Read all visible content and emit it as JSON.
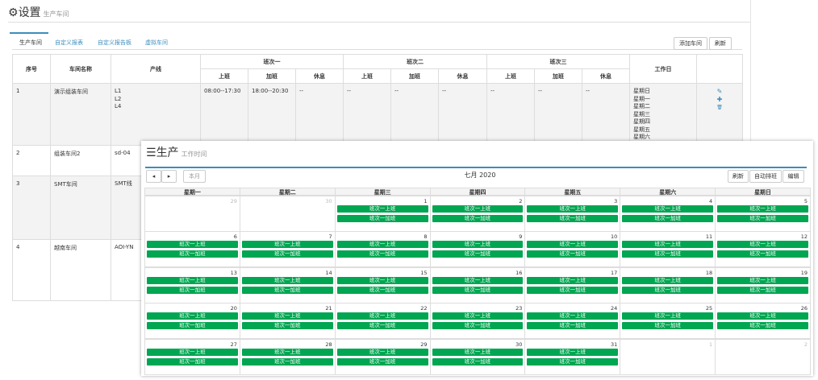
{
  "back": {
    "title": "设置",
    "subtitle": "生产车间",
    "tabs": [
      "生产车间",
      "自定义报表",
      "自定义报告板",
      "虚拟车间"
    ],
    "buttons": [
      "添加车间",
      "刷新"
    ],
    "table": {
      "headers": [
        "序号",
        "车间名称",
        "产线",
        "班次一",
        "班次二",
        "班次三",
        "工作日"
      ],
      "subheaders": [
        "上班",
        "加班",
        "休息",
        "上班",
        "加班",
        "休息",
        "上班",
        "加班",
        "休息"
      ],
      "rows": [
        {
          "id": "1",
          "name": "演示组装车间",
          "lines": [
            "L1",
            "L2",
            "L4"
          ],
          "shifts": [
            "08:00--17:30",
            "18:00--20:30",
            "--",
            "--",
            "--",
            "--",
            "--",
            "--",
            "--"
          ],
          "workdays": [
            "星期日",
            "星期一",
            "星期二",
            "星期三",
            "星期四",
            "星期五",
            "星期六"
          ]
        },
        {
          "id": "2",
          "name": "组装车间2",
          "lines": [
            "sd-04"
          ]
        },
        {
          "id": "3",
          "name": "SMT车间",
          "lines": [
            "SMT线"
          ]
        },
        {
          "id": "4",
          "name": "越南车间",
          "lines": [
            "AOI-YN"
          ]
        }
      ]
    }
  },
  "front": {
    "title": "生产",
    "subtitle": "工作时间",
    "today_button": "本月",
    "month": "七月 2020",
    "buttons": [
      "刷新",
      "自动排班",
      "编辑"
    ],
    "weekdays": [
      "星期一",
      "星期二",
      "星期三",
      "星期四",
      "星期五",
      "星期六",
      "星期日"
    ],
    "weeks": [
      [
        {
          "day": 29
        },
        {
          "day": 30
        },
        {
          "day": 1,
          "events": [
            "班次一上班",
            "班次一加班"
          ]
        },
        {
          "day": 2,
          "events": [
            "班次一上班",
            "班次一加班"
          ]
        },
        {
          "day": 3,
          "events": [
            "班次一上班",
            "班次一加班"
          ]
        },
        {
          "day": 4,
          "events": [
            "班次一上班",
            "班次一加班"
          ]
        },
        {
          "day": 5,
          "events": [
            "班次一上班",
            "班次一加班"
          ]
        }
      ],
      [
        {
          "day": 6,
          "events": [
            "班次一上班",
            "班次一加班"
          ]
        },
        {
          "day": 7,
          "events": [
            "班次一上班",
            "班次一加班"
          ]
        },
        {
          "day": 8,
          "events": [
            "班次一上班",
            "班次一加班"
          ]
        },
        {
          "day": 9,
          "events": [
            "班次一上班",
            "班次一加班"
          ]
        },
        {
          "day": 10,
          "events": [
            "班次一上班",
            "班次一加班"
          ]
        },
        {
          "day": 11,
          "events": [
            "班次一上班",
            "班次一加班"
          ]
        },
        {
          "day": 12,
          "events": [
            "班次一上班",
            "班次一加班"
          ]
        }
      ],
      [
        {
          "day": 13,
          "events": [
            "班次一上班",
            "班次一加班"
          ]
        },
        {
          "day": 14,
          "events": [
            "班次一上班",
            "班次一加班"
          ]
        },
        {
          "day": 15,
          "events": [
            "班次一上班",
            "班次一加班"
          ]
        },
        {
          "day": 16,
          "events": [
            "班次一上班",
            "班次一加班"
          ]
        },
        {
          "day": 17,
          "events": [
            "班次一上班",
            "班次一加班"
          ]
        },
        {
          "day": 18,
          "events": [
            "班次一上班",
            "班次一加班"
          ]
        },
        {
          "day": 19,
          "events": [
            "班次一上班",
            "班次一加班"
          ]
        }
      ],
      [
        {
          "day": 20,
          "events": [
            "班次一上班",
            "班次一加班"
          ]
        },
        {
          "day": 21,
          "events": [
            "班次一上班",
            "班次一加班"
          ]
        },
        {
          "day": 22,
          "events": [
            "班次一上班",
            "班次一加班"
          ]
        },
        {
          "day": 23,
          "events": [
            "班次一上班",
            "班次一加班"
          ]
        },
        {
          "day": 24,
          "events": [
            "班次一上班",
            "班次一加班"
          ]
        },
        {
          "day": 25,
          "events": [
            "班次一上班",
            "班次一加班"
          ]
        },
        {
          "day": 26,
          "events": [
            "班次一上班",
            "班次一加班"
          ]
        }
      ],
      [
        {
          "day": 27,
          "events": [
            "班次一上班",
            "班次一加班"
          ]
        },
        {
          "day": 28,
          "events": [
            "班次一上班",
            "班次一加班"
          ]
        },
        {
          "day": 29,
          "events": [
            "班次一上班",
            "班次一加班"
          ]
        },
        {
          "day": 30,
          "events": [
            "班次一上班",
            "班次一加班"
          ]
        },
        {
          "day": 31,
          "events": [
            "班次一上班",
            "班次一加班"
          ]
        },
        {
          "day": 1
        },
        {
          "day": 2
        }
      ]
    ]
  }
}
